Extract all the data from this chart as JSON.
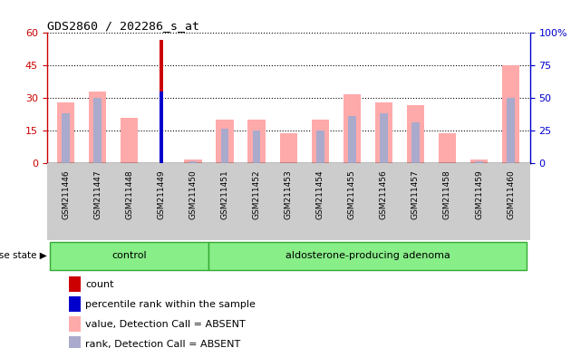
{
  "title": "GDS2860 / 202286_s_at",
  "samples": [
    "GSM211446",
    "GSM211447",
    "GSM211448",
    "GSM211449",
    "GSM211450",
    "GSM211451",
    "GSM211452",
    "GSM211453",
    "GSM211454",
    "GSM211455",
    "GSM211456",
    "GSM211457",
    "GSM211458",
    "GSM211459",
    "GSM211460"
  ],
  "group_control": [
    "GSM211446",
    "GSM211447",
    "GSM211448",
    "GSM211449",
    "GSM211450"
  ],
  "group_adenoma": [
    "GSM211451",
    "GSM211452",
    "GSM211453",
    "GSM211454",
    "GSM211455",
    "GSM211456",
    "GSM211457",
    "GSM211458",
    "GSM211459",
    "GSM211460"
  ],
  "count_values": [
    0,
    0,
    0,
    57,
    0,
    0,
    0,
    0,
    0,
    0,
    0,
    0,
    0,
    0,
    0
  ],
  "percentile_values": [
    0,
    0,
    0,
    33,
    0,
    0,
    0,
    0,
    0,
    0,
    0,
    0,
    0,
    0,
    0
  ],
  "value_absent": [
    28,
    33,
    21,
    0,
    2,
    20,
    20,
    14,
    20,
    32,
    28,
    27,
    14,
    2,
    45
  ],
  "rank_absent": [
    23,
    30,
    0,
    0,
    1,
    16,
    15,
    0,
    15,
    22,
    23,
    19,
    0,
    1,
    30
  ],
  "ylim_left": [
    0,
    60
  ],
  "ylim_right": [
    0,
    100
  ],
  "yticks_left": [
    0,
    15,
    30,
    45,
    60
  ],
  "yticks_right": [
    0,
    25,
    50,
    75,
    100
  ],
  "ytick_labels_left": [
    "0",
    "15",
    "30",
    "45",
    "60"
  ],
  "ytick_labels_right": [
    "0",
    "25",
    "50",
    "75",
    "100%"
  ],
  "color_count": "#cc0000",
  "color_percentile": "#0000cc",
  "color_value_absent": "#ffaaaa",
  "color_rank_absent": "#aaaacc",
  "group_control_label": "control",
  "group_adenoma_label": "aldosterone-producing adenoma",
  "disease_state_label": "disease state",
  "legend_items": [
    {
      "color": "#cc0000",
      "label": "count"
    },
    {
      "color": "#0000cc",
      "label": "percentile rank within the sample"
    },
    {
      "color": "#ffaaaa",
      "label": "value, Detection Call = ABSENT"
    },
    {
      "color": "#aaaacc",
      "label": "rank, Detection Call = ABSENT"
    }
  ],
  "bar_width": 0.55,
  "xticklabel_bg": "#cccccc",
  "group_box_color": "#88ee88",
  "group_box_edge": "#33aa33"
}
